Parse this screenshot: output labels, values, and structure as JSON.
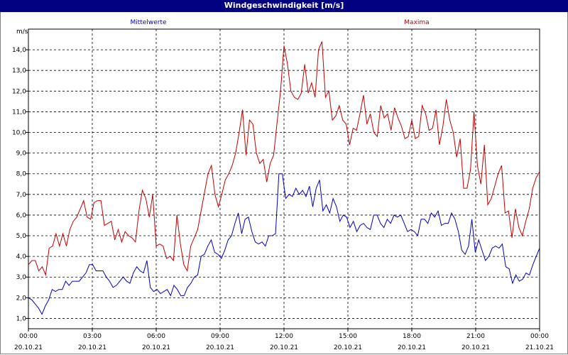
{
  "window": {
    "title": "Windgeschwindigkeit [m/s]"
  },
  "chart_data": {
    "type": "line",
    "ylabel": "m/s",
    "ylim": [
      0.5,
      15.0
    ],
    "xlim": [
      0,
      24
    ],
    "grid": true,
    "yticks": [
      "1,0",
      "2,0",
      "3,0",
      "4,0",
      "5,0",
      "6,0",
      "7,0",
      "8,0",
      "9,0",
      "10,0",
      "11,0",
      "12,0",
      "13,0",
      "14,0"
    ],
    "ytick_values": [
      1,
      2,
      3,
      4,
      5,
      6,
      7,
      8,
      9,
      10,
      11,
      12,
      13,
      14
    ],
    "xticks": [
      {
        "time": "00:00",
        "date": "20.10.21"
      },
      {
        "time": "03:00",
        "date": "20.10.21"
      },
      {
        "time": "06:00",
        "date": "20.10.21"
      },
      {
        "time": "09:00",
        "date": "20.10.21"
      },
      {
        "time": "12:00",
        "date": "20.10.21"
      },
      {
        "time": "15:00",
        "date": "20.10.21"
      },
      {
        "time": "18:00",
        "date": "20.10.21"
      },
      {
        "time": "21:00",
        "date": "20.10.21"
      },
      {
        "time": "00:00",
        "date": "21.10.21"
      }
    ],
    "series": [
      {
        "name": "Mittelwerte",
        "color": "#0000c0",
        "values": [
          2.0,
          1.9,
          1.7,
          1.5,
          1.2,
          1.6,
          1.9,
          2.4,
          2.3,
          2.4,
          2.4,
          2.8,
          2.6,
          2.8,
          2.8,
          2.8,
          3.0,
          3.2,
          3.6,
          3.6,
          3.3,
          3.3,
          3.3,
          3.0,
          2.8,
          2.5,
          2.6,
          2.8,
          3.0,
          2.8,
          2.7,
          3.2,
          3.5,
          3.3,
          3.2,
          3.8,
          2.5,
          2.3,
          2.4,
          2.2,
          2.3,
          2.4,
          2.1,
          2.6,
          2.4,
          2.1,
          2.1,
          2.5,
          2.7,
          3.0,
          3.1,
          4.0,
          4.1,
          4.5,
          4.8,
          4.2,
          4.1,
          3.9,
          4.3,
          4.8,
          5.0,
          5.6,
          6.1,
          5.1,
          5.8,
          5.9,
          5.2,
          4.7,
          4.6,
          4.7,
          4.5,
          5.0,
          5.0,
          5.1,
          8.0,
          8.0,
          6.8,
          7.0,
          6.9,
          7.3,
          7.0,
          7.2,
          6.9,
          7.4,
          6.4,
          7.3,
          7.7,
          6.2,
          6.5,
          6.1,
          6.8,
          6.4,
          5.7,
          6.0,
          5.9,
          5.4,
          5.7,
          5.2,
          5.5,
          5.6,
          5.4,
          5.3,
          6.0,
          6.0,
          5.6,
          5.4,
          5.8,
          5.6,
          6.0,
          5.9,
          6.0,
          5.6,
          5.2,
          5.3,
          5.2,
          5.0,
          5.8,
          5.8,
          5.6,
          6.1,
          5.9,
          6.2,
          5.5,
          5.6,
          5.6,
          6.1,
          5.8,
          5.2,
          4.3,
          4.1,
          4.5,
          5.8,
          4.2,
          4.8,
          4.3,
          3.8,
          4.0,
          4.4,
          4.5,
          4.4,
          4.6,
          3.5,
          3.4,
          2.7,
          3.1,
          2.8,
          2.9,
          3.2,
          3.1,
          3.6,
          4.0,
          4.4
        ]
      },
      {
        "name": "Maxima",
        "color": "#c00000",
        "values": [
          3.6,
          3.8,
          3.8,
          3.3,
          3.5,
          3.1,
          4.4,
          4.5,
          5.1,
          4.5,
          5.1,
          4.5,
          5.3,
          5.7,
          5.9,
          6.3,
          6.7,
          5.9,
          5.8,
          6.6,
          6.7,
          6.7,
          5.5,
          5.6,
          5.7,
          4.8,
          5.3,
          4.7,
          5.2,
          5.0,
          4.9,
          4.7,
          6.2,
          7.2,
          6.8,
          5.9,
          7.0,
          4.5,
          4.6,
          4.5,
          3.9,
          4.0,
          3.8,
          6.0,
          4.6,
          3.6,
          3.3,
          4.5,
          4.9,
          5.3,
          6.2,
          7.1,
          8.0,
          8.4,
          7.0,
          6.4,
          7.0,
          7.7,
          8.0,
          8.4,
          9.0,
          10.0,
          11.1,
          8.9,
          10.6,
          10.4,
          9.0,
          8.5,
          8.7,
          7.6,
          8.5,
          8.9,
          10.5,
          12.0,
          14.2,
          13.3,
          12.0,
          11.7,
          11.6,
          11.9,
          13.3,
          11.9,
          12.4,
          11.7,
          14.0,
          14.4,
          11.7,
          12.0,
          10.6,
          10.8,
          11.3,
          10.6,
          10.4,
          9.4,
          10.2,
          10.1,
          10.9,
          11.8,
          10.4,
          10.9,
          10.0,
          9.8,
          11.3,
          10.7,
          10.9,
          10.1,
          11.2,
          10.7,
          10.3,
          9.7,
          9.8,
          10.6,
          9.7,
          9.8,
          11.3,
          10.9,
          10.1,
          10.2,
          11.1,
          9.4,
          10.3,
          11.6,
          10.6,
          10.0,
          8.8,
          9.7,
          7.3,
          7.3,
          8.2,
          11.0,
          8.4,
          7.5,
          9.4,
          6.5,
          6.8,
          7.4,
          8.0,
          8.4,
          6.1,
          6.2,
          4.9,
          6.3,
          5.4,
          5.0,
          5.7,
          6.3,
          7.3,
          7.8,
          8.1
        ]
      }
    ]
  }
}
